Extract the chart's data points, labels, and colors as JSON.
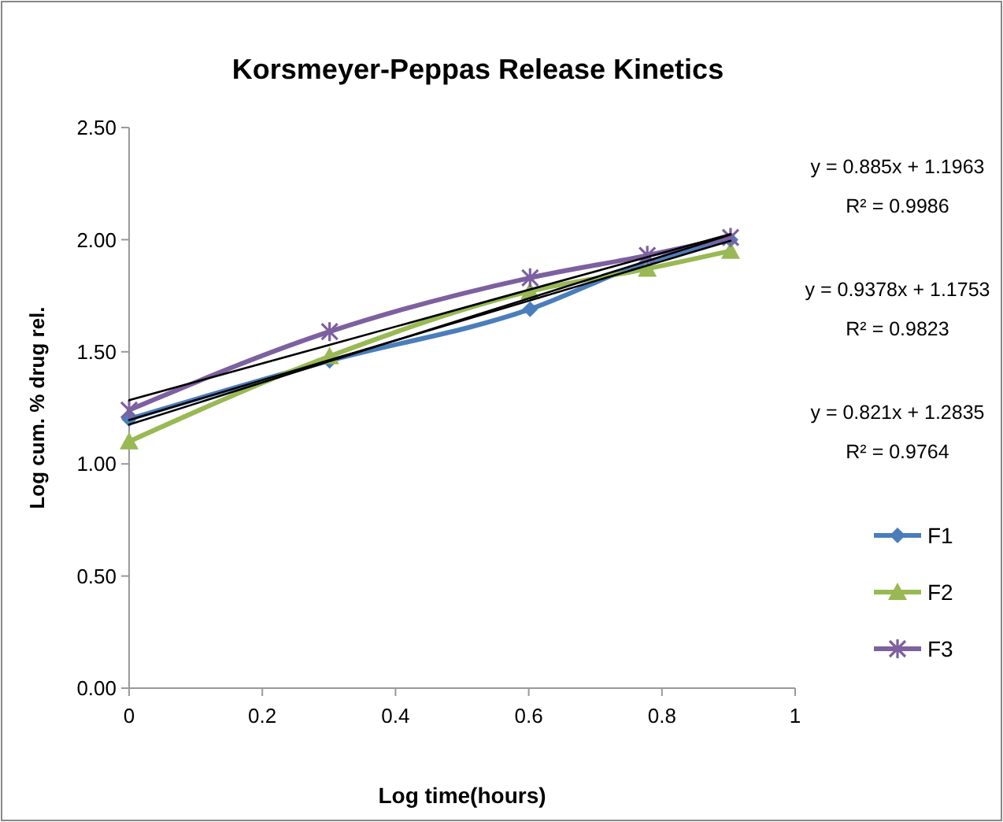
{
  "chart_data": {
    "type": "line",
    "title": "Korsmeyer-Peppas Release Kinetics",
    "xlabel": "Log time(hours)",
    "ylabel": "Log cum. % drug rel.",
    "x": [
      0,
      0.301,
      0.602,
      0.778,
      0.903
    ],
    "series": [
      {
        "name": "F1",
        "color": "#4a7ebb",
        "marker": "diamond",
        "values": [
          1.2,
          1.46,
          1.69,
          1.9,
          2.0
        ]
      },
      {
        "name": "F2",
        "color": "#98b954",
        "marker": "triangle",
        "values": [
          1.1,
          1.48,
          1.77,
          1.87,
          1.95
        ]
      },
      {
        "name": "F3",
        "color": "#7d60a0",
        "marker": "cross",
        "values": [
          1.24,
          1.59,
          1.83,
          1.93,
          2.01
        ]
      },
      {
        "color": "#000000",
        "marker": "none",
        "values": [
          1.196,
          1.463,
          1.729,
          1.885,
          1.995
        ]
      },
      {
        "color": "#000000",
        "marker": "none",
        "values": [
          1.175,
          1.458,
          1.74,
          1.905,
          2.022
        ]
      },
      {
        "color": "#000000",
        "marker": "none",
        "values": [
          1.284,
          1.531,
          1.778,
          1.922,
          2.025
        ]
      }
    ],
    "annotations": [
      "y = 0.885x + 1.1963",
      "R² = 0.9986",
      "y = 0.9378x + 1.1753",
      "R² = 0.9823",
      "y = 0.821x + 1.2835",
      "R² = 0.9764"
    ],
    "xlim": [
      0,
      1
    ],
    "xticks": [
      0,
      0.2,
      0.4,
      0.6,
      0.8,
      1
    ],
    "ylim": [
      0,
      2.5
    ],
    "yticks": [
      {
        "value": 0,
        "label": "0.00"
      },
      {
        "value": 0.5,
        "label": "0.50"
      },
      {
        "value": 1,
        "label": "1.00"
      },
      {
        "value": 1.5,
        "label": "1.50"
      },
      {
        "value": 2,
        "label": "2.00"
      },
      {
        "value": 2.5,
        "label": "2.50"
      }
    ],
    "grid": false,
    "legend": "right"
  }
}
